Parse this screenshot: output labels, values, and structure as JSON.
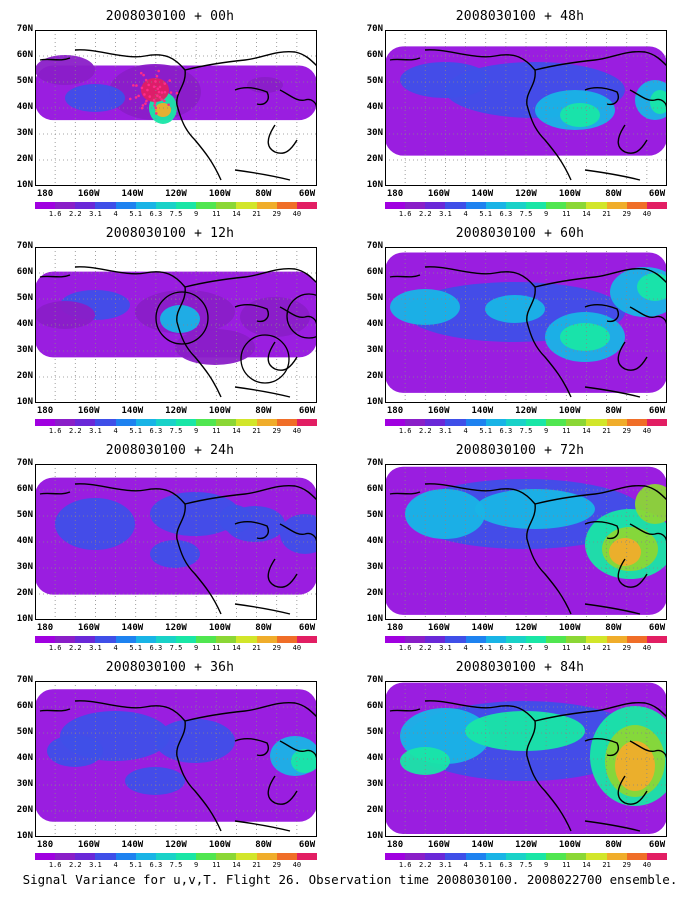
{
  "panels": [
    {
      "title": "2008030100 + 00h",
      "fill": 0.35,
      "markers": true,
      "blobs": [
        [
          120,
          62,
          46,
          28,
          "#8a1ec8"
        ],
        [
          60,
          68,
          30,
          14,
          "#3f4fe8"
        ],
        [
          128,
          78,
          14,
          16,
          "#19e6a6"
        ],
        [
          128,
          80,
          8,
          7,
          "#f0ad2b"
        ],
        [
          120,
          60,
          14,
          12,
          "#e21e63"
        ],
        [
          30,
          40,
          30,
          15,
          "#8a1ec8"
        ],
        [
          230,
          55,
          18,
          8,
          "#8a1ec8"
        ]
      ]
    },
    {
      "title": "2008030100 + 12h",
      "fill": 0.55,
      "circles": true,
      "blobs": [
        [
          150,
          65,
          50,
          22,
          "#8a1ec8"
        ],
        [
          145,
          72,
          20,
          14,
          "#19b4e6"
        ],
        [
          60,
          58,
          35,
          15,
          "#3f4fe8"
        ],
        [
          240,
          70,
          35,
          20,
          "#8a1ec8"
        ],
        [
          180,
          100,
          40,
          18,
          "#8a1ec8"
        ],
        [
          30,
          68,
          30,
          14,
          "#8a1ec8"
        ]
      ]
    },
    {
      "title": "2008030100 + 24h",
      "fill": 0.75,
      "blobs": [
        [
          60,
          60,
          40,
          26,
          "#3f4fe8"
        ],
        [
          160,
          50,
          45,
          22,
          "#3f4fe8"
        ],
        [
          140,
          90,
          25,
          14,
          "#3f4fe8"
        ],
        [
          220,
          60,
          30,
          18,
          "#3f4fe8"
        ],
        [
          270,
          70,
          25,
          20,
          "#3f4fe8"
        ],
        [
          200,
          55,
          16,
          14,
          "#3f4fe8"
        ]
      ]
    },
    {
      "title": "2008030100 + 36h",
      "fill": 0.85,
      "blobs": [
        [
          80,
          55,
          55,
          25,
          "#3f4fe8"
        ],
        [
          160,
          60,
          40,
          22,
          "#3f4fe8"
        ],
        [
          260,
          75,
          25,
          20,
          "#19b4e6"
        ],
        [
          270,
          80,
          14,
          12,
          "#19e6a6"
        ],
        [
          40,
          70,
          28,
          16,
          "#3f4fe8"
        ],
        [
          120,
          100,
          30,
          14,
          "#3f4fe8"
        ]
      ]
    },
    {
      "title": "2008030100 + 48h",
      "fill": 0.7,
      "blobs": [
        [
          150,
          60,
          90,
          28,
          "#3f4fe8"
        ],
        [
          190,
          80,
          40,
          20,
          "#19b4e6"
        ],
        [
          195,
          85,
          20,
          12,
          "#19e6a6"
        ],
        [
          270,
          70,
          20,
          20,
          "#19b4e6"
        ],
        [
          275,
          72,
          10,
          12,
          "#19e6a6"
        ],
        [
          60,
          50,
          45,
          18,
          "#3f4fe8"
        ]
      ]
    },
    {
      "title": "2008030100 + 60h",
      "fill": 0.9,
      "blobs": [
        [
          130,
          65,
          110,
          30,
          "#3f4fe8"
        ],
        [
          130,
          62,
          30,
          14,
          "#19b4e6"
        ],
        [
          200,
          90,
          40,
          25,
          "#19b4e6"
        ],
        [
          200,
          90,
          25,
          14,
          "#19e6a6"
        ],
        [
          260,
          45,
          35,
          25,
          "#19b4e6"
        ],
        [
          270,
          40,
          18,
          14,
          "#19e6a6"
        ],
        [
          40,
          60,
          35,
          18,
          "#19b4e6"
        ]
      ]
    },
    {
      "title": "2008030100 + 72h",
      "fill": 0.95,
      "blobs": [
        [
          140,
          50,
          120,
          35,
          "#3f4fe8"
        ],
        [
          60,
          50,
          40,
          25,
          "#19b4e6"
        ],
        [
          150,
          45,
          60,
          20,
          "#19b4e6"
        ],
        [
          245,
          80,
          45,
          35,
          "#19e6a6"
        ],
        [
          245,
          85,
          28,
          22,
          "#8bd735"
        ],
        [
          240,
          88,
          16,
          14,
          "#f0ad2b"
        ],
        [
          270,
          40,
          20,
          20,
          "#8bd735"
        ]
      ]
    },
    {
      "title": "2008030100 + 84h",
      "fill": 0.97,
      "blobs": [
        [
          140,
          60,
          120,
          40,
          "#3f4fe8"
        ],
        [
          60,
          55,
          45,
          28,
          "#19b4e6"
        ],
        [
          140,
          50,
          60,
          20,
          "#19e6a6"
        ],
        [
          250,
          75,
          45,
          50,
          "#19e6a6"
        ],
        [
          250,
          80,
          30,
          36,
          "#8bd735"
        ],
        [
          250,
          85,
          20,
          25,
          "#f0ad2b"
        ],
        [
          40,
          80,
          25,
          14,
          "#19e6a6"
        ]
      ]
    }
  ],
  "axes": {
    "lat_labels": [
      "70N",
      "60N",
      "50N",
      "40N",
      "30N",
      "20N",
      "10N"
    ],
    "lon_labels": [
      "180",
      "160W",
      "140W",
      "120W",
      "100W",
      "80W",
      "60W"
    ]
  },
  "colorbar": {
    "labels": [
      "1.6",
      "2.2",
      "3.1",
      "4",
      "5.1",
      "6.3",
      "7.5",
      "9",
      "11",
      "14",
      "21",
      "29",
      "40"
    ],
    "colors": [
      "#a000e0",
      "#8a1ec8",
      "#6a28d8",
      "#3f4fe8",
      "#1e82f0",
      "#19b4e6",
      "#19d2c8",
      "#19e6a6",
      "#50e650",
      "#8bd735",
      "#d2e62a",
      "#f0ad2b",
      "#f06e28",
      "#e21e63"
    ]
  },
  "caption": "Signal Variance for u,v,T. Flight 26. Observation time 2008030100. 2008022700 ensemble."
}
